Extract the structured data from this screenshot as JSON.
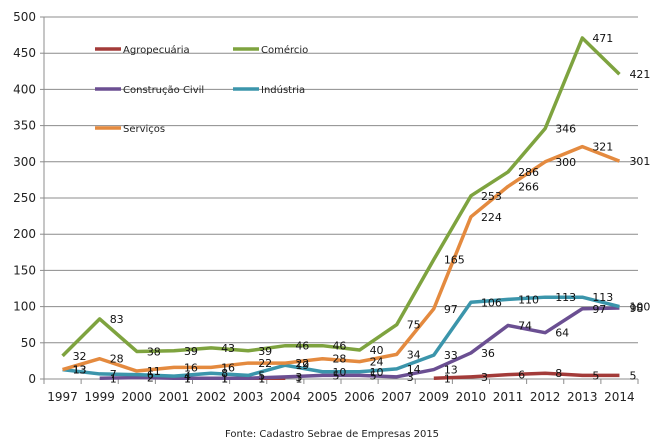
{
  "chart_data": {
    "type": "line",
    "title": "",
    "xlabel": "",
    "ylabel": "",
    "ylim": [
      0,
      500
    ],
    "yticks": [
      0,
      50,
      100,
      150,
      200,
      250,
      300,
      350,
      400,
      450,
      500
    ],
    "grid": true,
    "legend_placement": "top-left (inside plot)",
    "categories": [
      "1997",
      "1999",
      "2000",
      "2001",
      "2002",
      "2003",
      "2004",
      "2005",
      "2006",
      "2007",
      "2009",
      "2010",
      "2011",
      "2012",
      "2013",
      "2014"
    ],
    "series": [
      {
        "name": "Agropecuária",
        "color": "#a33b39",
        "values": [
          null,
          null,
          null,
          1,
          1,
          1,
          1,
          null,
          null,
          null,
          1,
          3,
          6,
          8,
          5,
          5
        ]
      },
      {
        "name": "Comércio",
        "color": "#7ea33f",
        "values": [
          32,
          83,
          38,
          39,
          43,
          39,
          46,
          46,
          40,
          75,
          165,
          253,
          286,
          346,
          471,
          421
        ]
      },
      {
        "name": "Construção Civil",
        "color": "#6b4f92",
        "values": [
          null,
          1,
          2,
          1,
          1,
          1,
          3,
          5,
          5,
          3,
          13,
          36,
          74,
          64,
          97,
          98
        ]
      },
      {
        "name": "Indústria",
        "color": "#3b95ab",
        "values": [
          13,
          7,
          6,
          4,
          8,
          5,
          19,
          10,
          10,
          14,
          33,
          106,
          110,
          113,
          113,
          100
        ]
      },
      {
        "name": "Serviços",
        "color": "#e48a3f",
        "values": [
          13,
          28,
          11,
          16,
          16,
          22,
          22,
          28,
          24,
          34,
          97,
          224,
          266,
          300,
          321,
          301
        ]
      }
    ],
    "source_note": "Fonte: Cadastro Sebrae de Empresas 2015"
  }
}
